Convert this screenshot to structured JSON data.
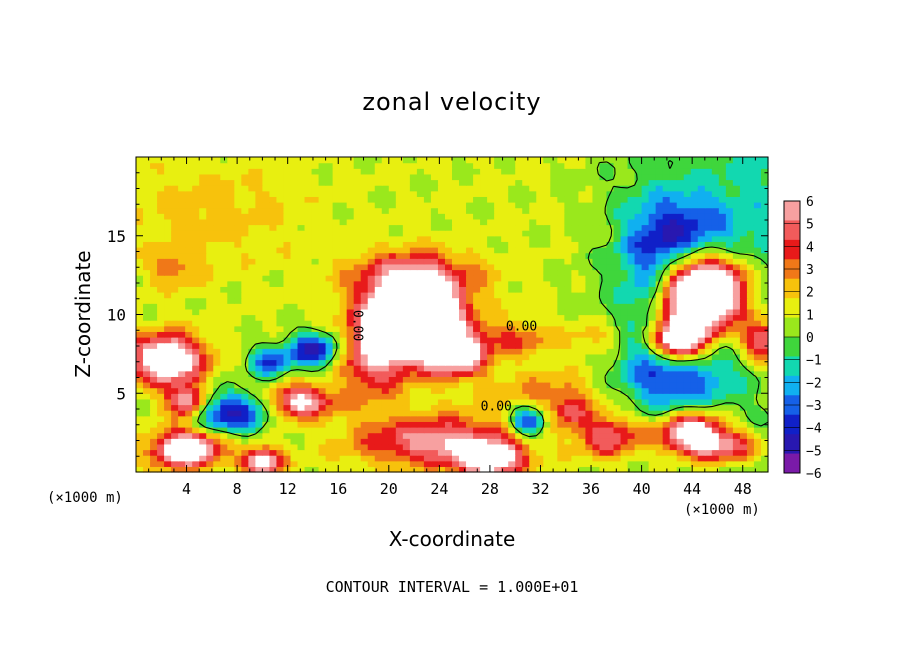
{
  "chart_data": {
    "type": "heatmap",
    "title": "zonal velocity",
    "xlabel": "X-coordinate",
    "ylabel": "Z-coordinate",
    "x_unit": "(×1000 m)",
    "y_unit": "(×1000 m)",
    "xlim": [
      0,
      50
    ],
    "ylim": [
      0,
      20
    ],
    "x_ticks": [
      "4",
      "8",
      "12",
      "16",
      "20",
      "24",
      "28",
      "32",
      "36",
      "40",
      "44",
      "48"
    ],
    "x_tick_values": [
      4,
      8,
      12,
      16,
      20,
      24,
      28,
      32,
      36,
      40,
      44,
      48
    ],
    "y_ticks": [
      "5",
      "10",
      "15"
    ],
    "y_tick_values": [
      5,
      10,
      15
    ],
    "colorbar": {
      "min": -6,
      "max": 6,
      "labels": [
        "6",
        "5",
        "4",
        "3",
        "2",
        "1",
        "0",
        "−1",
        "−2",
        "−3",
        "−4",
        "−5",
        "−6"
      ],
      "label_values": [
        6,
        5,
        4,
        3,
        2,
        1,
        0,
        -1,
        -2,
        -3,
        -4,
        -5,
        -6
      ],
      "colors": [
        "#f7a0a0",
        "#f25b5b",
        "#e81a1a",
        "#f07818",
        "#f7c20c",
        "#e8ef10",
        "#9ae81c",
        "#3fd63c",
        "#12d8b0",
        "#10b0f0",
        "#1560e8",
        "#1020c8",
        "#2818b0",
        "#7a1aa8"
      ]
    },
    "contour_labels": [
      "0.00",
      "0.00",
      "0.00"
    ],
    "contour_interval_note": "CONTOUR INTERVAL = 1.000E+01",
    "features": [
      {
        "x": 22.0,
        "z": 9.8,
        "sx": 3.5,
        "sy": 2.6,
        "v": 13.0
      },
      {
        "x": 25.5,
        "z": 7.5,
        "sx": 2.2,
        "sy": 1.3,
        "v": 6.0
      },
      {
        "x": 22.0,
        "z": 12.5,
        "sx": 5.5,
        "sy": 1.5,
        "v": 2.5
      },
      {
        "x": 18.5,
        "z": 7.0,
        "sx": 2.3,
        "sy": 2.7,
        "v": 3.5
      },
      {
        "x": 14.0,
        "z": 7.8,
        "sx": 1.9,
        "sy": 1.1,
        "v": -6.0
      },
      {
        "x": 10.5,
        "z": 7.0,
        "sx": 1.6,
        "sy": 1.0,
        "v": -4.5
      },
      {
        "x": 13.0,
        "z": 4.5,
        "sx": 2.4,
        "sy": 1.0,
        "v": 6.0
      },
      {
        "x": 7.5,
        "z": 3.8,
        "sx": 3.0,
        "sy": 1.3,
        "v": -5.5
      },
      {
        "x": 2.5,
        "z": 7.2,
        "sx": 2.7,
        "sy": 1.5,
        "v": 8.0
      },
      {
        "x": 4.0,
        "z": 1.5,
        "sx": 2.5,
        "sy": 1.1,
        "v": 8.5
      },
      {
        "x": 4.0,
        "z": 4.5,
        "sx": 1.5,
        "sy": 1.0,
        "v": 6.0
      },
      {
        "x": 10.0,
        "z": 0.7,
        "sx": 1.5,
        "sy": 0.8,
        "v": 7.0
      },
      {
        "x": 24.0,
        "z": 2.0,
        "sx": 6.0,
        "sy": 1.5,
        "v": 5.0
      },
      {
        "x": 28.0,
        "z": 0.8,
        "sx": 2.5,
        "sy": 1.0,
        "v": 7.0
      },
      {
        "x": 31.0,
        "z": 3.2,
        "sx": 1.4,
        "sy": 1.0,
        "v": -5.5
      },
      {
        "x": 34.5,
        "z": 3.8,
        "sx": 1.2,
        "sy": 0.9,
        "v": 3.0
      },
      {
        "x": 37.5,
        "z": 2.3,
        "sx": 2.5,
        "sy": 1.3,
        "v": 4.5
      },
      {
        "x": 44.0,
        "z": 2.5,
        "sx": 2.5,
        "sy": 1.3,
        "v": 8.0
      },
      {
        "x": 47.0,
        "z": 1.6,
        "sx": 2.5,
        "sy": 1.0,
        "v": 4.0
      },
      {
        "x": 42.5,
        "z": 6.2,
        "sx": 4.5,
        "sy": 2.5,
        "v": -4.5
      },
      {
        "x": 45.0,
        "z": 11.5,
        "sx": 3.2,
        "sy": 2.3,
        "v": 13.0
      },
      {
        "x": 43.0,
        "z": 8.5,
        "sx": 2.0,
        "sy": 1.5,
        "v": 10.0
      },
      {
        "x": 43.5,
        "z": 15.0,
        "sx": 3.8,
        "sy": 2.6,
        "v": -4.0
      },
      {
        "x": 40.5,
        "z": 12.5,
        "sx": 2.5,
        "sy": 4.5,
        "v": -2.5
      },
      {
        "x": 49.5,
        "z": 8.5,
        "sx": 1.5,
        "sy": 1.5,
        "v": 5.0
      },
      {
        "x": 6.0,
        "z": 16.5,
        "sx": 6.5,
        "sy": 3.0,
        "v": 1.2
      },
      {
        "x": 3.0,
        "z": 13.0,
        "sx": 2.0,
        "sy": 1.2,
        "v": 2.0
      },
      {
        "x": 30.0,
        "z": 8.5,
        "sx": 3.0,
        "sy": 1.0,
        "v": 2.5
      },
      {
        "x": 36.5,
        "z": 8.5,
        "sx": 2.5,
        "sy": 1.2,
        "v": 1.5
      },
      {
        "x": 33.0,
        "z": 5.0,
        "sx": 5.0,
        "sy": 1.5,
        "v": 2.0
      }
    ]
  }
}
